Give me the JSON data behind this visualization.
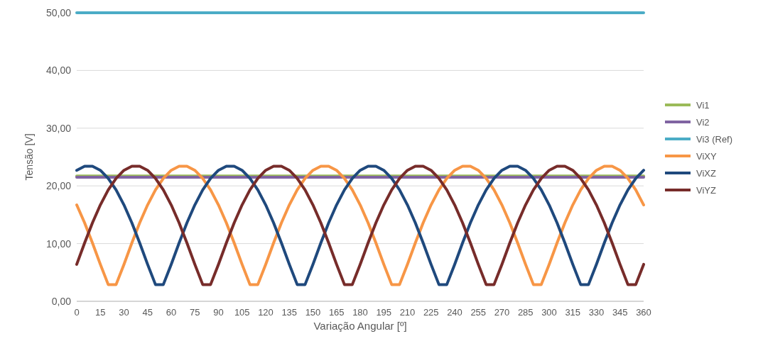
{
  "chart_data": {
    "type": "line",
    "xlabel": "Variação Angular [º]",
    "ylabel": "Tensão [V]",
    "x": [
      0,
      5,
      10,
      15,
      20,
      25,
      30,
      35,
      40,
      45,
      50,
      55,
      60,
      65,
      70,
      75,
      80,
      85,
      90,
      95,
      100,
      105,
      110,
      115,
      120,
      125,
      130,
      135,
      140,
      145,
      150,
      155,
      160,
      165,
      170,
      175,
      180,
      185,
      190,
      195,
      200,
      205,
      210,
      215,
      220,
      225,
      230,
      235,
      240,
      245,
      250,
      255,
      260,
      265,
      270,
      275,
      280,
      285,
      290,
      295,
      300,
      305,
      310,
      315,
      320,
      325,
      330,
      335,
      340,
      345,
      350,
      355,
      360
    ],
    "xlim": [
      0,
      360
    ],
    "xticks": [
      0,
      15,
      30,
      45,
      60,
      75,
      90,
      105,
      120,
      135,
      150,
      165,
      180,
      195,
      210,
      225,
      240,
      255,
      270,
      285,
      300,
      315,
      330,
      345,
      360
    ],
    "ylim": [
      0,
      50
    ],
    "yticks": [
      {
        "value": 0,
        "label": "0,00"
      },
      {
        "value": 10,
        "label": "10,00"
      },
      {
        "value": 20,
        "label": "20,00"
      },
      {
        "value": 30,
        "label": "30,00"
      },
      {
        "value": 40,
        "label": "40,00"
      },
      {
        "value": 50,
        "label": "50,00"
      }
    ],
    "grid": "y",
    "legend": "right",
    "marker": "none",
    "line_style": "solid",
    "series": [
      {
        "name": "Vi1",
        "color": "#9bbb59",
        "values": [
          21.7,
          21.7,
          21.7,
          21.7,
          21.7,
          21.7,
          21.7,
          21.7,
          21.7,
          21.7,
          21.7,
          21.7,
          21.7,
          21.7,
          21.7,
          21.7,
          21.7,
          21.7,
          21.7,
          21.7,
          21.7,
          21.7,
          21.7,
          21.7,
          21.7,
          21.7,
          21.7,
          21.7,
          21.7,
          21.7,
          21.7,
          21.7,
          21.7,
          21.7,
          21.7,
          21.7,
          21.7,
          21.7,
          21.7,
          21.7,
          21.7,
          21.7,
          21.7,
          21.7,
          21.7,
          21.7,
          21.7,
          21.7,
          21.7,
          21.7,
          21.7,
          21.7,
          21.7,
          21.7,
          21.7,
          21.7,
          21.7,
          21.7,
          21.7,
          21.7,
          21.7,
          21.7,
          21.7,
          21.7,
          21.7,
          21.7,
          21.7,
          21.7,
          21.7,
          21.7,
          21.7,
          21.7,
          21.7
        ]
      },
      {
        "name": "Vi2",
        "color": "#8064a2",
        "values": [
          21.5,
          21.5,
          21.5,
          21.5,
          21.5,
          21.5,
          21.5,
          21.5,
          21.5,
          21.5,
          21.5,
          21.5,
          21.5,
          21.5,
          21.5,
          21.5,
          21.5,
          21.5,
          21.5,
          21.5,
          21.5,
          21.5,
          21.5,
          21.5,
          21.5,
          21.5,
          21.5,
          21.5,
          21.5,
          21.5,
          21.5,
          21.5,
          21.5,
          21.5,
          21.5,
          21.5,
          21.5,
          21.5,
          21.5,
          21.5,
          21.5,
          21.5,
          21.5,
          21.5,
          21.5,
          21.5,
          21.5,
          21.5,
          21.5,
          21.5,
          21.5,
          21.5,
          21.5,
          21.5,
          21.5,
          21.5,
          21.5,
          21.5,
          21.5,
          21.5,
          21.5,
          21.5,
          21.5,
          21.5,
          21.5,
          21.5,
          21.5,
          21.5,
          21.5,
          21.5,
          21.5,
          21.5,
          21.5
        ]
      },
      {
        "name": "Vi3 (Ref)",
        "color": "#4bacc6",
        "values": [
          50,
          50,
          50,
          50,
          50,
          50,
          50,
          50,
          50,
          50,
          50,
          50,
          50,
          50,
          50,
          50,
          50,
          50,
          50,
          50,
          50,
          50,
          50,
          50,
          50,
          50,
          50,
          50,
          50,
          50,
          50,
          50,
          50,
          50,
          50,
          50,
          50,
          50,
          50,
          50,
          50,
          50,
          50,
          50,
          50,
          50,
          50,
          50,
          50,
          50,
          50,
          50,
          50,
          50,
          50,
          50,
          50,
          50,
          50,
          50,
          50,
          50,
          50,
          50,
          50,
          50,
          50,
          50,
          50,
          50,
          50,
          50,
          50
        ]
      },
      {
        "name": "ViXY",
        "color": "#f79646",
        "values": [
          16.7,
          13.6,
          10.1,
          6.4,
          2.9,
          2.9,
          6.4,
          10.1,
          13.6,
          16.7,
          19.3,
          21.3,
          22.7,
          23.4,
          23.4,
          22.7,
          21.3,
          19.3,
          16.7,
          13.6,
          10.1,
          6.4,
          2.9,
          2.9,
          6.4,
          10.1,
          13.6,
          16.7,
          19.3,
          21.3,
          22.7,
          23.4,
          23.4,
          22.7,
          21.3,
          19.3,
          16.7,
          13.6,
          10.1,
          6.4,
          2.9,
          2.9,
          6.4,
          10.1,
          13.6,
          16.7,
          19.3,
          21.3,
          22.7,
          23.4,
          23.4,
          22.7,
          21.3,
          19.3,
          16.7,
          13.6,
          10.1,
          6.4,
          2.9,
          2.9,
          6.4,
          10.1,
          13.6,
          16.7,
          19.3,
          21.3,
          22.7,
          23.4,
          23.4,
          22.7,
          21.3,
          19.3,
          16.7
        ]
      },
      {
        "name": "ViXZ",
        "color": "#1f497d",
        "values": [
          22.7,
          23.4,
          23.4,
          22.7,
          21.3,
          19.3,
          16.7,
          13.6,
          10.1,
          6.4,
          2.9,
          2.9,
          6.4,
          10.1,
          13.6,
          16.7,
          19.3,
          21.3,
          22.7,
          23.4,
          23.4,
          22.7,
          21.3,
          19.3,
          16.7,
          13.6,
          10.1,
          6.4,
          2.9,
          2.9,
          6.4,
          10.1,
          13.6,
          16.7,
          19.3,
          21.3,
          22.7,
          23.4,
          23.4,
          22.7,
          21.3,
          19.3,
          16.7,
          13.6,
          10.1,
          6.4,
          2.9,
          2.9,
          6.4,
          10.1,
          13.6,
          16.7,
          19.3,
          21.3,
          22.7,
          23.4,
          23.4,
          22.7,
          21.3,
          19.3,
          16.7,
          13.6,
          10.1,
          6.4,
          2.9,
          2.9,
          6.4,
          10.1,
          13.6,
          16.7,
          19.3,
          21.3,
          22.7
        ]
      },
      {
        "name": "ViYZ",
        "color": "#772c2a",
        "values": [
          6.4,
          10.1,
          13.6,
          16.7,
          19.3,
          21.3,
          22.7,
          23.4,
          23.4,
          22.7,
          21.3,
          19.3,
          16.7,
          13.6,
          10.1,
          6.4,
          2.9,
          2.9,
          6.4,
          10.1,
          13.6,
          16.7,
          19.3,
          21.3,
          22.7,
          23.4,
          23.4,
          22.7,
          21.3,
          19.3,
          16.7,
          13.6,
          10.1,
          6.4,
          2.9,
          2.9,
          6.4,
          10.1,
          13.6,
          16.7,
          19.3,
          21.3,
          22.7,
          23.4,
          23.4,
          22.7,
          21.3,
          19.3,
          16.7,
          13.6,
          10.1,
          6.4,
          2.9,
          2.9,
          6.4,
          10.1,
          13.6,
          16.7,
          19.3,
          21.3,
          22.7,
          23.4,
          23.4,
          22.7,
          21.3,
          19.3,
          16.7,
          13.6,
          10.1,
          6.4,
          2.9,
          2.9,
          6.4
        ]
      }
    ]
  }
}
